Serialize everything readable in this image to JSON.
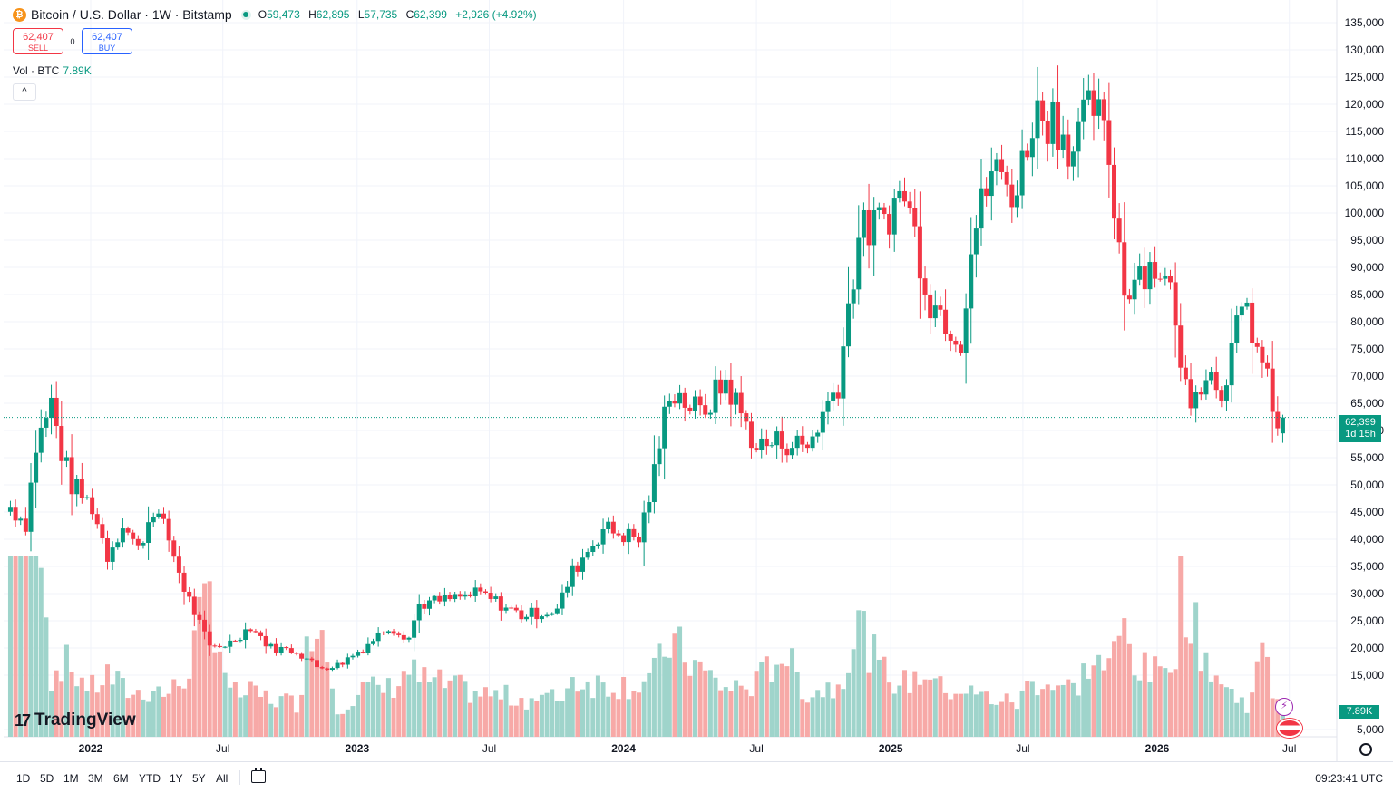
{
  "header": {
    "coin_icon_text": "₿",
    "title": "Bitcoin / U.S. Dollar · 1W · Bitstamp",
    "ohlc": {
      "open_label": "O",
      "open": "59,473",
      "high_label": "H",
      "high": "62,895",
      "low_label": "L",
      "low": "57,735",
      "close_label": "C",
      "close": "62,399",
      "change": "+2,926 (+4.92%)"
    }
  },
  "trade": {
    "sell_price": "62,407",
    "sell_label": "SELL",
    "spread": "0",
    "buy_price": "62,407",
    "buy_label": "BUY"
  },
  "volume_legend": {
    "label": "Vol · BTC",
    "value": "7.89K"
  },
  "collapse_glyph": "^",
  "logo": {
    "mark": "17",
    "text": "TradingView"
  },
  "price_tag": {
    "price": "62,399",
    "countdown": "1d 15h"
  },
  "volume_tag": "7.89K",
  "bolt_glyph": "⚡",
  "bottom_bar": {
    "ranges": [
      "1D",
      "5D",
      "1M",
      "3M",
      "6M",
      "YTD",
      "1Y",
      "5Y",
      "All"
    ],
    "clock": "09:23:41 UTC"
  },
  "colors": {
    "up": "#089981",
    "down": "#f23645",
    "vol_up": "#9fd4cb",
    "vol_down": "#f7a9a7",
    "grid": "#f0f3fa"
  },
  "chart_data": {
    "type": "candlestick",
    "interval": "1W",
    "y_axis": {
      "ticks": [
        5000,
        15000,
        20000,
        25000,
        30000,
        35000,
        40000,
        45000,
        50000,
        55000,
        60000,
        65000,
        70000,
        75000,
        80000,
        85000,
        90000,
        95000,
        100000,
        105000,
        110000,
        115000,
        120000,
        125000,
        130000,
        135000
      ],
      "tick_labels": [
        "5,000",
        "15,000",
        "20,000",
        "25,000",
        "30,000",
        "35,000",
        "40,000",
        "45,000",
        "50,000",
        "55,000",
        "60,000",
        "65,000",
        "70,000",
        "75,000",
        "80,000",
        "85,000",
        "90,000",
        "95,000",
        "100,000",
        "105,000",
        "110,000",
        "115,000",
        "120,000",
        "125,000",
        "130,000",
        "135,000"
      ],
      "ylim": [
        5000,
        135000
      ]
    },
    "x_axis": {
      "ticks": [
        "2022-01-01",
        "2022-07-01",
        "2023-01-01",
        "2023-07-01",
        "2024-01-01",
        "2024-07-01",
        "2025-01-01",
        "2025-07-01",
        "2026-01-01",
        "2026-07-01"
      ],
      "tick_labels": [
        "2022",
        "Jul",
        "2023",
        "Jul",
        "2024",
        "Jul",
        "2025",
        "Jul",
        "2026",
        "Jul"
      ]
    },
    "anchors": [
      [
        "2021-09-13",
        46000,
        55000
      ],
      [
        "2021-10-04",
        43000,
        55000
      ],
      [
        "2021-10-18",
        57000,
        65000
      ],
      [
        "2021-11-08",
        65000,
        12000
      ],
      [
        "2021-11-22",
        56000,
        16000
      ],
      [
        "2021-12-06",
        50000,
        14000
      ],
      [
        "2022-01-03",
        46000,
        10000
      ],
      [
        "2022-01-24",
        37000,
        13000
      ],
      [
        "2022-02-14",
        43000,
        10000
      ],
      [
        "2022-03-07",
        38000,
        9000
      ],
      [
        "2022-03-28",
        46000,
        10000
      ],
      [
        "2022-04-18",
        40000,
        9000
      ],
      [
        "2022-05-09",
        31000,
        12000
      ],
      [
        "2022-06-13",
        20000,
        30000
      ],
      [
        "2022-07-11",
        21000,
        9000
      ],
      [
        "2022-08-08",
        24000,
        9000
      ],
      [
        "2022-09-05",
        20000,
        8000
      ],
      [
        "2022-10-10",
        19500,
        7000
      ],
      [
        "2022-11-07",
        16500,
        28000
      ],
      [
        "2022-12-05",
        16800,
        6000
      ],
      [
        "2023-01-09",
        20000,
        10000
      ],
      [
        "2023-02-13",
        24000,
        10000
      ],
      [
        "2023-03-13",
        22000,
        14000
      ],
      [
        "2023-03-27",
        28000,
        12000
      ],
      [
        "2023-06-19",
        30000,
        9000
      ],
      [
        "2023-08-14",
        26000,
        8000
      ],
      [
        "2023-10-02",
        27000,
        8000
      ],
      [
        "2023-10-23",
        34000,
        12000
      ],
      [
        "2023-12-04",
        42000,
        11000
      ],
      [
        "2024-01-22",
        40000,
        11000
      ],
      [
        "2024-02-12",
        52000,
        13000
      ],
      [
        "2024-03-04",
        68000,
        20000
      ],
      [
        "2024-04-15",
        63000,
        14000
      ],
      [
        "2024-05-20",
        69000,
        10000
      ],
      [
        "2024-07-01",
        57000,
        11000
      ],
      [
        "2024-08-05",
        58000,
        18000
      ],
      [
        "2024-09-09",
        57000,
        9000
      ],
      [
        "2024-10-21",
        69000,
        11000
      ],
      [
        "2024-11-18",
        96000,
        24000
      ],
      [
        "2024-12-16",
        98000,
        14000
      ],
      [
        "2025-01-20",
        104000,
        11000
      ],
      [
        "2025-02-24",
        84000,
        14000
      ],
      [
        "2025-03-10",
        82000,
        10000
      ],
      [
        "2025-04-07",
        77000,
        10000
      ],
      [
        "2025-04-21",
        94000,
        9000
      ],
      [
        "2025-05-19",
        108000,
        8000
      ],
      [
        "2025-06-23",
        104000,
        7000
      ],
      [
        "2025-07-14",
        118000,
        12000
      ],
      [
        "2025-08-11",
        118000,
        11000
      ],
      [
        "2025-09-08",
        112000,
        10000
      ],
      [
        "2025-10-06",
        120000,
        16000
      ],
      [
        "2025-10-27",
        110000,
        14000
      ],
      [
        "2025-11-17",
        86000,
        23000
      ],
      [
        "2025-12-08",
        90000,
        14000
      ],
      [
        "2026-01-05",
        90000,
        13000
      ],
      [
        "2026-01-26",
        82000,
        20000
      ],
      [
        "2026-02-02",
        70000,
        35000
      ],
      [
        "2026-02-16",
        67000,
        24000
      ],
      [
        "2026-03-09",
        71000,
        17000
      ],
      [
        "2026-03-30",
        68000,
        11000
      ],
      [
        "2026-04-20",
        78000,
        8000
      ],
      [
        "2026-05-04",
        82000,
        7000
      ],
      [
        "2026-05-25",
        72000,
        17000
      ],
      [
        "2026-06-08",
        65000,
        10000
      ],
      [
        "2026-06-15",
        59473,
        9000
      ],
      [
        "2026-06-22",
        62399,
        7890
      ]
    ],
    "last_bar": {
      "open": 59473,
      "high": 62895,
      "low": 57735,
      "close": 62399,
      "volume": 7890
    },
    "last_price_line": 62399
  }
}
